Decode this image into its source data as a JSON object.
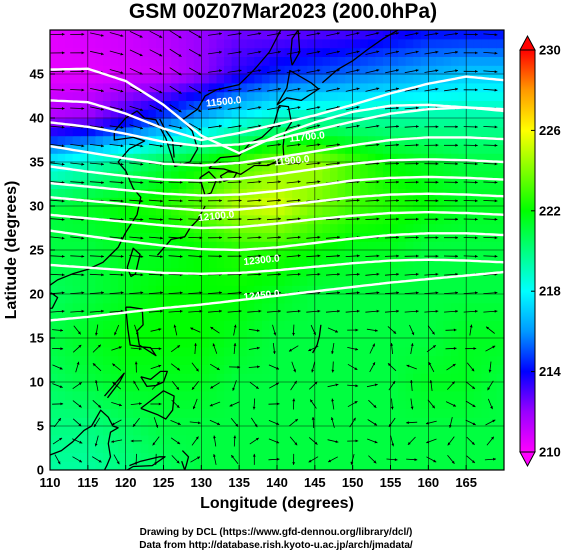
{
  "chart_data": {
    "type": "heatmap",
    "title": "GSM 00Z07Mar2023 (200.0hPa)",
    "xlabel": "Longitude (degrees)",
    "ylabel": "Latitude  (degrees)",
    "xlim": [
      110,
      170
    ],
    "ylim": [
      0,
      50
    ],
    "x_ticks": [
      110,
      115,
      120,
      125,
      130,
      135,
      140,
      145,
      150,
      155,
      160,
      165
    ],
    "y_ticks": [
      0,
      5,
      10,
      15,
      20,
      25,
      30,
      35,
      40,
      45
    ],
    "colorbar": {
      "min": 210,
      "max": 230,
      "ticks": [
        210,
        214,
        218,
        222,
        226,
        230
      ],
      "colors": [
        "#ff00ff",
        "#9900ff",
        "#0000ff",
        "#0099ff",
        "#00ffff",
        "#00ff80",
        "#00ff00",
        "#80ff00",
        "#ffff00",
        "#ff9900",
        "#ff0000"
      ]
    },
    "contour_labels": [
      {
        "text": "11500.0",
        "lon": 133,
        "lat": 41.5
      },
      {
        "text": "11700.0",
        "lon": 144,
        "lat": 37.5
      },
      {
        "text": "11900.0",
        "lon": 142,
        "lat": 34.8
      },
      {
        "text": "12100.0",
        "lon": 132,
        "lat": 28.5
      },
      {
        "text": "12300.0",
        "lon": 138,
        "lat": 23.5
      },
      {
        "text": "12450.0",
        "lon": 138,
        "lat": 19.5
      }
    ],
    "contours": [
      {
        "level": 11500,
        "lat": [
          45.5,
          45.6,
          44.2,
          41.5,
          38.0,
          36.0,
          38.0,
          39.5,
          40.7,
          41.4,
          41.5,
          41.2,
          40.8
        ]
      },
      {
        "level": 11600,
        "lat": [
          42.0,
          41.8,
          40.5,
          38.8,
          37.5,
          38.3,
          39.3,
          40.3,
          41.5,
          42.8,
          43.9,
          44.7,
          44.3
        ]
      },
      {
        "level": 11700,
        "lat": [
          39.5,
          39.0,
          38.2,
          37.3,
          36.8,
          37.0,
          37.6,
          38.6,
          39.6,
          40.5,
          41.0,
          41.2,
          41.0
        ]
      },
      {
        "level": 11800,
        "lat": [
          36.8,
          36.1,
          35.4,
          34.8,
          34.6,
          34.9,
          35.5,
          36.2,
          36.9,
          37.5,
          37.8,
          37.8,
          37.6
        ]
      },
      {
        "level": 11900,
        "lat": [
          34.5,
          33.9,
          33.4,
          33.0,
          32.9,
          33.1,
          33.6,
          34.2,
          34.8,
          35.2,
          35.3,
          35.2,
          35.0
        ]
      },
      {
        "level": 12000,
        "lat": [
          32.6,
          32.2,
          31.8,
          31.4,
          31.2,
          31.3,
          31.7,
          32.3,
          32.9,
          33.2,
          33.3,
          33.2,
          33.0
        ]
      },
      {
        "level": 12100,
        "lat": [
          31.0,
          30.6,
          30.2,
          29.8,
          29.5,
          29.6,
          30.0,
          30.5,
          31.0,
          31.3,
          31.4,
          31.3,
          31.1
        ]
      },
      {
        "level": 12200,
        "lat": [
          29.0,
          28.6,
          28.2,
          27.8,
          27.5,
          27.6,
          28.0,
          28.5,
          28.9,
          29.2,
          29.3,
          29.2,
          29.0
        ]
      },
      {
        "level": 12300,
        "lat": [
          27.2,
          26.6,
          26.0,
          25.5,
          25.1,
          25.0,
          25.3,
          25.8,
          26.3,
          26.7,
          26.9,
          26.9,
          26.7
        ]
      },
      {
        "level": 12400,
        "lat": [
          23.3,
          23.0,
          22.7,
          22.4,
          22.3,
          22.4,
          22.7,
          23.1,
          23.5,
          23.8,
          23.9,
          23.8,
          23.6
        ]
      },
      {
        "level": 12450,
        "lat": [
          17.0,
          17.4,
          17.9,
          18.4,
          18.8,
          19.3,
          19.8,
          20.3,
          20.8,
          21.3,
          21.7,
          22.1,
          22.5
        ]
      }
    ],
    "background_field": [
      {
        "lat": 50,
        "values": [
          210.5,
          210.8,
          211.0,
          211.5,
          212.0,
          212.5,
          212.5,
          212.8,
          213.0,
          213.5,
          214.0,
          214.0,
          214.0
        ]
      },
      {
        "lat": 45,
        "values": [
          210.5,
          210.5,
          210.8,
          211.0,
          212.0,
          213.5,
          214.5,
          215.0,
          215.5,
          216.0,
          216.5,
          217.0,
          217.0
        ]
      },
      {
        "lat": 40,
        "values": [
          211.5,
          212.0,
          213.5,
          215.0,
          216.5,
          218.0,
          219.0,
          219.5,
          219.5,
          219.5,
          219.5,
          219.5,
          219.5
        ]
      },
      {
        "lat": 35,
        "values": [
          218.0,
          219.0,
          220.0,
          221.0,
          222.0,
          223.0,
          224.0,
          224.5,
          223.0,
          222.0,
          221.5,
          221.0,
          221.0
        ]
      },
      {
        "lat": 30,
        "values": [
          221.0,
          221.5,
          222.0,
          222.5,
          223.5,
          225.0,
          225.5,
          224.0,
          223.0,
          222.5,
          222.0,
          221.5,
          221.5
        ]
      },
      {
        "lat": 25,
        "values": [
          221.0,
          221.0,
          221.5,
          221.5,
          222.0,
          222.5,
          222.5,
          222.0,
          221.5,
          221.5,
          221.0,
          221.0,
          221.0
        ]
      },
      {
        "lat": 20,
        "values": [
          220.5,
          221.0,
          221.5,
          222.0,
          222.0,
          222.0,
          221.5,
          221.0,
          221.0,
          221.0,
          221.0,
          221.0,
          221.0
        ]
      },
      {
        "lat": 15,
        "values": [
          221.0,
          221.5,
          222.0,
          222.0,
          222.0,
          221.5,
          221.0,
          221.0,
          221.0,
          221.0,
          221.0,
          221.5,
          221.5
        ]
      },
      {
        "lat": 10,
        "values": [
          220.5,
          221.0,
          221.5,
          221.5,
          221.5,
          221.0,
          221.0,
          221.0,
          221.0,
          221.0,
          221.5,
          221.5,
          221.0
        ]
      },
      {
        "lat": 5,
        "values": [
          220.0,
          220.0,
          220.5,
          221.0,
          221.0,
          221.0,
          221.0,
          221.0,
          221.0,
          221.0,
          221.0,
          221.0,
          221.0
        ]
      },
      {
        "lat": 0,
        "values": [
          219.5,
          219.5,
          220.0,
          220.5,
          221.0,
          221.0,
          221.0,
          221.0,
          221.0,
          221.0,
          221.0,
          221.0,
          221.0
        ]
      }
    ],
    "grid": true
  },
  "credits": {
    "line1": "Drawing by DCL (https://www.gfd-dennou.org/library/dcl/)",
    "line2": "Data from http://database.rish.kyoto-u.ac.jp/arch/jmadata/"
  }
}
